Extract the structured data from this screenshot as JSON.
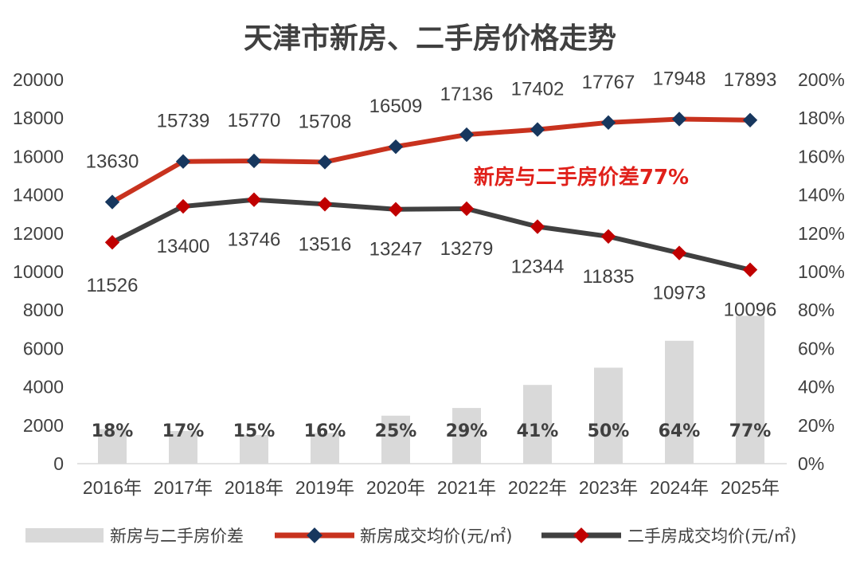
{
  "chart_data": {
    "type": "bar+line",
    "title": "天津市新房、二手房价格走势",
    "categories": [
      "2016年",
      "2017年",
      "2018年",
      "2019年",
      "2020年",
      "2021年",
      "2022年",
      "2023年",
      "2024年",
      "2025年"
    ],
    "left_axis": {
      "ylim": [
        0,
        20000
      ],
      "ticks": [
        "0",
        "2000",
        "4000",
        "6000",
        "8000",
        "10000",
        "12000",
        "14000",
        "16000",
        "18000",
        "20000"
      ]
    },
    "right_axis": {
      "ylim": [
        0,
        200
      ],
      "ticks": [
        "0%",
        "20%",
        "40%",
        "60%",
        "80%",
        "100%",
        "120%",
        "140%",
        "160%",
        "180%",
        "200%"
      ]
    },
    "series": [
      {
        "name": "新房与二手房价差",
        "type": "bar",
        "axis": "right",
        "color": "#d9d9d9",
        "values": [
          18,
          17,
          15,
          16,
          25,
          29,
          41,
          50,
          64,
          77
        ],
        "labels": [
          "18%",
          "17%",
          "15%",
          "16%",
          "25%",
          "29%",
          "41%",
          "50%",
          "64%",
          "77%"
        ]
      },
      {
        "name": "新房成交均价(元/㎡)",
        "type": "line",
        "axis": "left",
        "color": "#c8321e",
        "marker_color": "#17375e",
        "values": [
          13630,
          15739,
          15770,
          15708,
          16509,
          17136,
          17402,
          17767,
          17948,
          17893
        ],
        "labels": [
          "13630",
          "15739",
          "15770",
          "15708",
          "16509",
          "17136",
          "17402",
          "17767",
          "17948",
          "17893"
        ]
      },
      {
        "name": "二手房成交均价(元/㎡)",
        "type": "line",
        "axis": "left",
        "color": "#404040",
        "marker_color": "#c00000",
        "values": [
          11526,
          13400,
          13746,
          13516,
          13247,
          13279,
          12344,
          11835,
          10973,
          10096
        ],
        "labels": [
          "11526",
          "13400",
          "13746",
          "13516",
          "13247",
          "13279",
          "12344",
          "11835",
          "10973",
          "10096"
        ]
      }
    ],
    "annotation": "新房与二手房价差77%",
    "grid": false,
    "legend_position": "bottom"
  }
}
